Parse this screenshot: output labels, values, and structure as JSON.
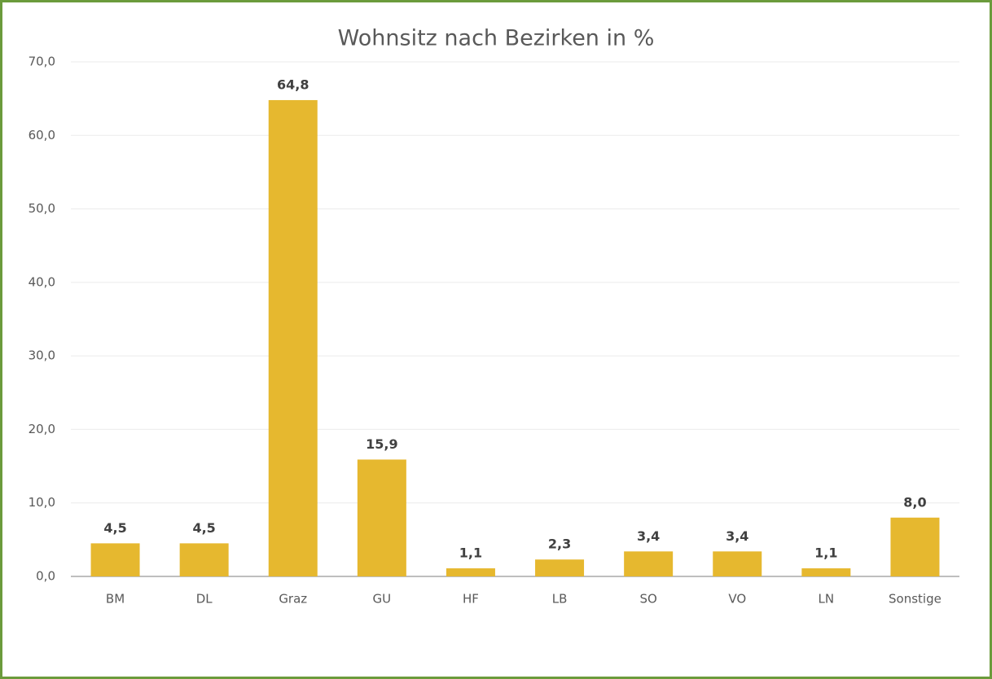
{
  "chart_data": {
    "type": "bar",
    "title": "Wohnsitz nach Bezirken in %",
    "categories": [
      "BM",
      "DL",
      "Graz",
      "GU",
      "HF",
      "LB",
      "SO",
      "VO",
      "LN",
      "Sonstige"
    ],
    "values": [
      4.5,
      4.5,
      64.8,
      15.9,
      1.1,
      2.3,
      3.4,
      3.4,
      1.1,
      8.0
    ],
    "value_labels": [
      "4,5",
      "4,5",
      "64,8",
      "15,9",
      "1,1",
      "2,3",
      "3,4",
      "3,4",
      "1,1",
      "8,0"
    ],
    "color": "#e6b82f",
    "ylim": [
      0,
      70
    ],
    "yticks": [
      {
        "value": 0,
        "label": "0,0"
      },
      {
        "value": 10,
        "label": "10,0"
      },
      {
        "value": 20,
        "label": "20,0"
      },
      {
        "value": 30,
        "label": "30,0"
      },
      {
        "value": 40,
        "label": "40,0"
      },
      {
        "value": 50,
        "label": "50,0"
      },
      {
        "value": 60,
        "label": "60,0"
      },
      {
        "value": 70,
        "label": "70,0"
      }
    ],
    "grid": true
  }
}
